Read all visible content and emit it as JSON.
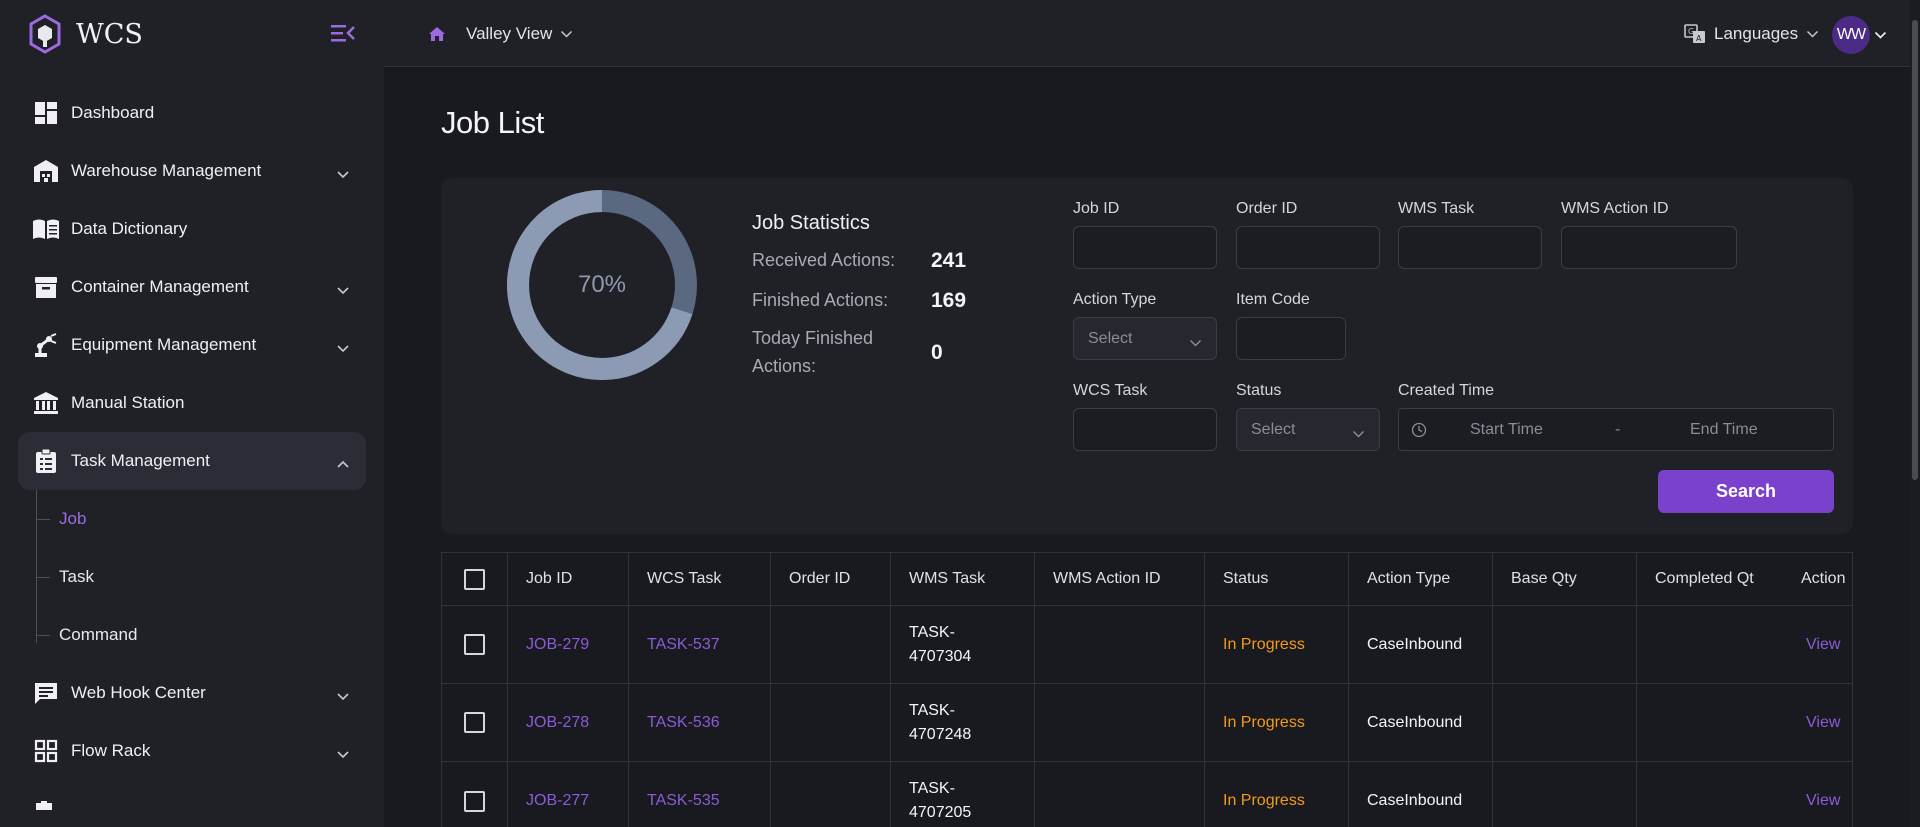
{
  "app": {
    "name": "WCS"
  },
  "sidebar": {
    "items": [
      {
        "label": "Dashboard"
      },
      {
        "label": "Warehouse Management"
      },
      {
        "label": "Data Dictionary"
      },
      {
        "label": "Container Management"
      },
      {
        "label": "Equipment Management"
      },
      {
        "label": "Manual Station"
      },
      {
        "label": "Task Management"
      },
      {
        "label": "Web Hook Center"
      },
      {
        "label": "Flow Rack"
      }
    ],
    "sub_items": [
      {
        "label": "Job"
      },
      {
        "label": "Task"
      },
      {
        "label": "Command"
      }
    ]
  },
  "topbar": {
    "site": "Valley View",
    "language_label": "Languages",
    "avatar_initials": "WW"
  },
  "page": {
    "title": "Job List"
  },
  "stats": {
    "percent_label": "70%",
    "progress_fraction": 0.7,
    "title": "Job Statistics",
    "received_label": "Received Actions:",
    "received_value": "241",
    "finished_label": "Finished Actions:",
    "finished_value": "169",
    "today_label_1": "Today Finished",
    "today_label_2": "Actions:",
    "today_value": "0"
  },
  "filters": {
    "job_id": "Job ID",
    "order_id": "Order ID",
    "wms_task": "WMS Task",
    "wms_action_id": "WMS Action ID",
    "action_type": "Action Type",
    "action_type_value": "Select",
    "item_code": "Item Code",
    "wcs_task": "WCS Task",
    "status": "Status",
    "status_value": "Select",
    "created_time": "Created Time",
    "start_time": "Start Time",
    "range_sep": "-",
    "end_time": "End Time",
    "search_label": "Search"
  },
  "table": {
    "headers": {
      "job_id": "Job ID",
      "wcs_task": "WCS Task",
      "order_id": "Order ID",
      "wms_task": "WMS Task",
      "wms_action_id": "WMS Action ID",
      "status": "Status",
      "action_type": "Action Type",
      "base_qty": "Base Qty",
      "completed_qty": "Completed Qt",
      "action": "Action"
    },
    "rows": [
      {
        "job_id": "JOB-279",
        "wcs_task": "TASK-537",
        "wms_task_1": "TASK-",
        "wms_task_2": "4707304",
        "status": "In Progress",
        "action_type": "CaseInbound",
        "action": "View"
      },
      {
        "job_id": "JOB-278",
        "wcs_task": "TASK-536",
        "wms_task_1": "TASK-",
        "wms_task_2": "4707248",
        "status": "In Progress",
        "action_type": "CaseInbound",
        "action": "View"
      },
      {
        "job_id": "JOB-277",
        "wcs_task": "TASK-535",
        "wms_task_1": "TASK-",
        "wms_task_2": "4707205",
        "status": "In Progress",
        "action_type": "CaseInbound",
        "action": "View"
      }
    ]
  },
  "colors": {
    "accent": "#7a42cc",
    "link": "#8b5bd6",
    "status_in_progress": "#f29b1b",
    "donut_fill": "#8c9ab4",
    "donut_track": "#5a6880"
  }
}
